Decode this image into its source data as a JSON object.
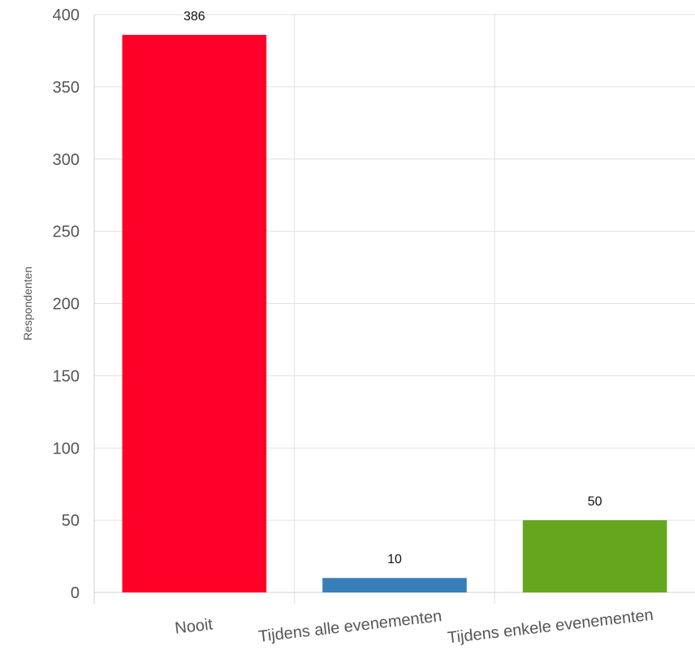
{
  "chart_data": {
    "type": "bar",
    "categories": [
      "Nooit",
      "Tijdens alle evenementen",
      "Tijdens enkele evenementen"
    ],
    "values": [
      386,
      10,
      50
    ],
    "colors": [
      "#ff0029",
      "#377eb8",
      "#66a61e"
    ],
    "title": "",
    "xlabel": "",
    "ylabel": "Respondenten",
    "ylim": [
      0,
      400
    ],
    "yticks": [
      0,
      50,
      100,
      150,
      200,
      250,
      300,
      350,
      400
    ],
    "grid": true,
    "legend": "none"
  }
}
